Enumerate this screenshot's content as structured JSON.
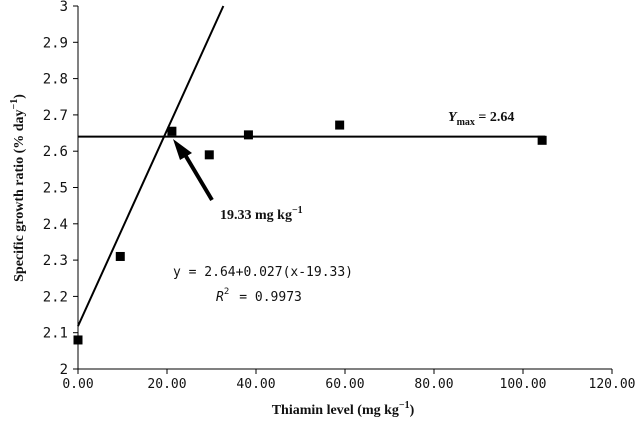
{
  "chart_data": {
    "type": "scatter",
    "xlabel": "Thiamin level (mg kg",
    "xlabel_sup": "−1",
    "xlabel_close": ")",
    "ylabel": "Specific growth ratio (% day",
    "ylabel_sup": "−1",
    "ylabel_close": ")",
    "xlim": [
      0,
      120
    ],
    "ylim": [
      2,
      3
    ],
    "x_ticks": [
      {
        "value": 0,
        "label": "0.00"
      },
      {
        "value": 20,
        "label": "20.00"
      },
      {
        "value": 40,
        "label": "40.00"
      },
      {
        "value": 60,
        "label": "60.00"
      },
      {
        "value": 80,
        "label": "80.00"
      },
      {
        "value": 100,
        "label": "100.00"
      },
      {
        "value": 120,
        "label": "120.00"
      }
    ],
    "y_ticks": [
      {
        "value": 2.0,
        "label": "2"
      },
      {
        "value": 2.1,
        "label": "2.1"
      },
      {
        "value": 2.2,
        "label": "2.2"
      },
      {
        "value": 2.3,
        "label": "2.3"
      },
      {
        "value": 2.4,
        "label": "2.4"
      },
      {
        "value": 2.5,
        "label": "2.5"
      },
      {
        "value": 2.6,
        "label": "2.6"
      },
      {
        "value": 2.7,
        "label": "2.7"
      },
      {
        "value": 2.8,
        "label": "2.8"
      },
      {
        "value": 2.9,
        "label": "2.9"
      },
      {
        "value": 3.0,
        "label": "3"
      }
    ],
    "grid": false,
    "points": [
      {
        "x": 0,
        "y": 2.08
      },
      {
        "x": 9.5,
        "y": 2.31
      },
      {
        "x": 21.1,
        "y": 2.655
      },
      {
        "x": 29.5,
        "y": 2.59
      },
      {
        "x": 38.3,
        "y": 2.645
      },
      {
        "x": 58.8,
        "y": 2.672
      },
      {
        "x": 104.3,
        "y": 2.63
      }
    ],
    "broken_line": {
      "breakpoint_x": 19.33,
      "plateau_y": 2.64,
      "slope": 0.027,
      "rising_from_x": 0,
      "plateau_to_x": 105
    },
    "annotations": {
      "ymax_italic": "Y",
      "ymax_sub": "max",
      "ymax_value": " = 2.64",
      "breakpoint_value": "19.33 mg kg",
      "breakpoint_sup": "−1",
      "equation": "y = 2.64+0.027(x-19.33)",
      "r2_label": "R",
      "r2_sup": "2",
      "r2_value": "= 0.9973"
    }
  }
}
